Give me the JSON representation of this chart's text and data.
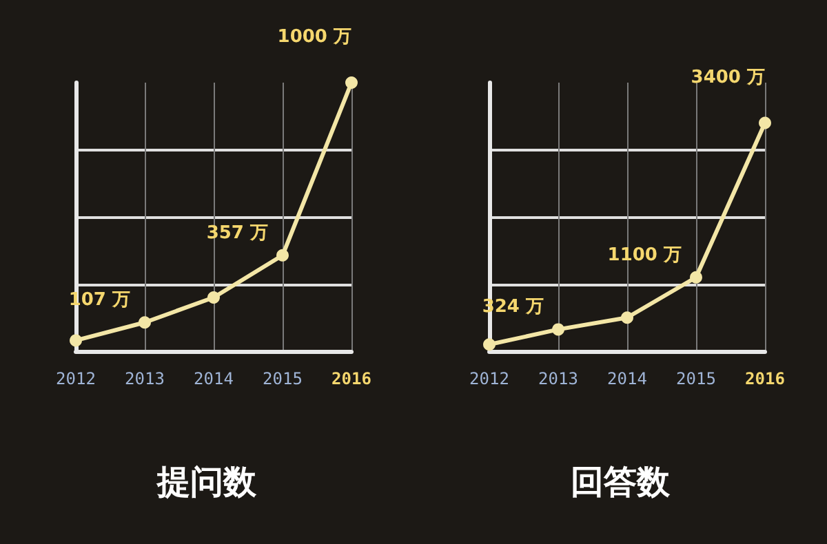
{
  "chart_data": [
    {
      "type": "line",
      "title": "提问数",
      "categories": [
        "2012",
        "2013",
        "2014",
        "2015",
        "2016"
      ],
      "series": [
        {
          "color": "#f3e6a6",
          "values": [
            40,
            107,
            200,
            357,
            1000
          ],
          "value_labels": [
            null,
            "107 万",
            null,
            "357 万",
            "1000 万"
          ]
        }
      ],
      "ylim": [
        0,
        1000
      ],
      "yticks": [
        {
          "value": 0,
          "label": null
        },
        {
          "value": 250,
          "label": null
        },
        {
          "value": 500,
          "label": null
        },
        {
          "value": 750,
          "label": null
        }
      ],
      "tick_labels": "x",
      "grid": true,
      "marker": "circle",
      "line_style": "solid"
    },
    {
      "type": "line",
      "title": "回答数",
      "categories": [
        "2012",
        "2013",
        "2014",
        "2015",
        "2016"
      ],
      "series": [
        {
          "color": "#f3e6a6",
          "values": [
            100,
            324,
            500,
            1100,
            3400
          ],
          "value_labels": [
            null,
            "324 万",
            null,
            "1100 万",
            "3400 万"
          ]
        }
      ],
      "ylim": [
        0,
        4000
      ],
      "yticks": [
        {
          "value": 0,
          "label": null
        },
        {
          "value": 1000,
          "label": null
        },
        {
          "value": 2000,
          "label": null
        },
        {
          "value": 3000,
          "label": null
        }
      ],
      "tick_labels": "x",
      "grid": true,
      "marker": "circle",
      "line_style": "solid"
    }
  ]
}
